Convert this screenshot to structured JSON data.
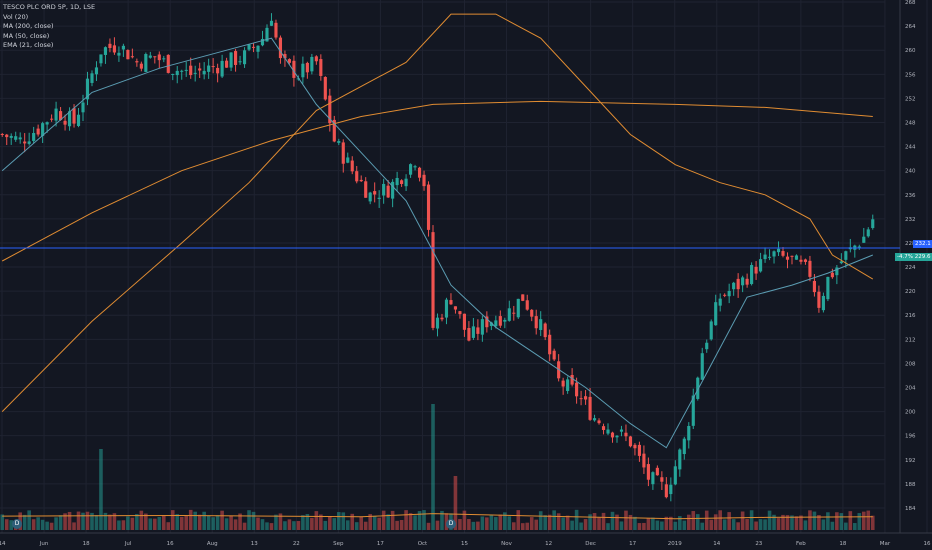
{
  "legend": {
    "symbol": "TESCO PLC ORD 5P, 1D, LSE",
    "vol": "Vol (20)",
    "ma200": "MA (200, close)",
    "ma50": "MA (50, close)",
    "ema21": "EMA (21, close)"
  },
  "price_labels": {
    "last": "232.1",
    "change": "-4.7%",
    "change_value": "229.6"
  },
  "markers": [
    {
      "label": "D",
      "x_label": "Jun"
    },
    {
      "label": "D",
      "x_label": "Oct"
    }
  ],
  "colors": {
    "background": "#131722",
    "up": "#26a69a",
    "down": "#ef5350",
    "ma200": "#e08c32",
    "ma50": "#e08c32",
    "ema21": "#5b9cb2",
    "price_line": "#2962ff"
  },
  "chart_data": {
    "type": "candlestick",
    "title": "TESCO PLC ORD 5P, 1D, LSE",
    "y_ticks": [
      184,
      188,
      192,
      196,
      200,
      204,
      208,
      212,
      216,
      220,
      224,
      228,
      232,
      236,
      240,
      244,
      248,
      252,
      256,
      260,
      264,
      268
    ],
    "x_ticks": [
      "14",
      "Jun",
      "18",
      "Jul",
      "16",
      "Aug",
      "13",
      "22",
      "Sep",
      "17",
      "Oct",
      "15",
      "Nov",
      "12",
      "Dec",
      "17",
      "2019",
      "14",
      "23",
      "Feb",
      "18",
      "Mar",
      "16"
    ],
    "ylim": [
      182,
      270
    ],
    "close_path": [
      [
        0,
        246
      ],
      [
        4,
        245
      ],
      [
        8,
        247
      ],
      [
        12,
        250
      ],
      [
        16,
        248
      ],
      [
        20,
        256
      ],
      [
        22,
        260
      ],
      [
        26,
        261
      ],
      [
        30,
        258
      ],
      [
        34,
        259
      ],
      [
        38,
        257
      ],
      [
        42,
        256
      ],
      [
        46,
        257
      ],
      [
        50,
        258
      ],
      [
        54,
        259
      ],
      [
        58,
        262
      ],
      [
        60,
        266
      ],
      [
        62,
        258
      ],
      [
        66,
        256
      ],
      [
        70,
        258
      ],
      [
        74,
        245
      ],
      [
        78,
        240
      ],
      [
        82,
        236
      ],
      [
        86,
        237
      ],
      [
        90,
        240
      ],
      [
        92,
        242
      ],
      [
        94,
        238
      ],
      [
        95,
        229
      ],
      [
        96,
        214
      ],
      [
        100,
        219
      ],
      [
        104,
        212
      ],
      [
        108,
        215
      ],
      [
        112,
        216
      ],
      [
        116,
        219
      ],
      [
        120,
        214
      ],
      [
        124,
        205
      ],
      [
        128,
        203
      ],
      [
        132,
        199
      ],
      [
        136,
        197
      ],
      [
        140,
        195
      ],
      [
        144,
        189
      ],
      [
        148,
        187
      ],
      [
        152,
        195
      ],
      [
        156,
        210
      ],
      [
        160,
        219
      ],
      [
        164,
        221
      ],
      [
        168,
        224
      ],
      [
        172,
        226
      ],
      [
        176,
        225
      ],
      [
        180,
        223
      ],
      [
        182,
        218
      ],
      [
        184,
        222
      ],
      [
        188,
        226
      ],
      [
        192,
        229
      ],
      [
        194,
        232
      ]
    ],
    "ma200": [
      [
        0,
        225
      ],
      [
        20,
        233
      ],
      [
        40,
        240
      ],
      [
        60,
        245
      ],
      [
        80,
        249
      ],
      [
        96,
        251
      ],
      [
        120,
        251.5
      ],
      [
        150,
        251
      ],
      [
        170,
        250.5
      ],
      [
        194,
        249
      ]
    ],
    "ma50": [
      [
        0,
        200
      ],
      [
        20,
        215
      ],
      [
        40,
        228
      ],
      [
        55,
        238
      ],
      [
        70,
        250
      ],
      [
        90,
        258
      ],
      [
        100,
        266
      ],
      [
        110,
        266
      ],
      [
        120,
        262
      ],
      [
        130,
        254
      ],
      [
        140,
        246
      ],
      [
        150,
        241
      ],
      [
        160,
        238
      ],
      [
        170,
        236
      ],
      [
        180,
        232
      ],
      [
        185,
        226
      ],
      [
        194,
        222
      ]
    ],
    "ema21": [
      [
        0,
        240
      ],
      [
        20,
        253
      ],
      [
        35,
        257
      ],
      [
        50,
        260
      ],
      [
        60,
        262
      ],
      [
        70,
        251
      ],
      [
        90,
        235
      ],
      [
        100,
        221
      ],
      [
        110,
        214
      ],
      [
        120,
        209
      ],
      [
        130,
        204
      ],
      [
        140,
        198
      ],
      [
        148,
        194
      ],
      [
        156,
        205
      ],
      [
        166,
        219
      ],
      [
        176,
        221
      ],
      [
        184,
        223
      ],
      [
        194,
        226
      ]
    ],
    "volume_ma": [
      [
        0,
        0.22
      ],
      [
        40,
        0.23
      ],
      [
        80,
        0.21
      ],
      [
        96,
        0.26
      ],
      [
        120,
        0.22
      ],
      [
        150,
        0.18
      ],
      [
        170,
        0.2
      ],
      [
        194,
        0.21
      ]
    ]
  }
}
